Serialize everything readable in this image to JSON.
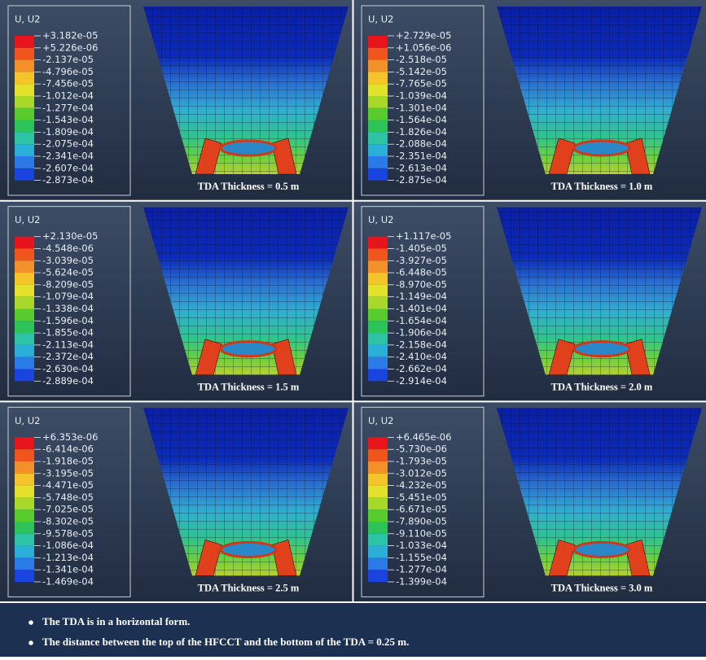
{
  "panels": [
    {
      "legend_title": "U, U2",
      "legend_values": [
        "+3.182e-05",
        "+5.226e-06",
        "-2.137e-05",
        "-4.796e-05",
        "-7.456e-05",
        "-1.012e-04",
        "-1.277e-04",
        "-1.543e-04",
        "-1.809e-04",
        "-2.075e-04",
        "-2.341e-04",
        "-2.607e-04",
        "-2.873e-04"
      ],
      "caption": "TDA Thickness = 0.5 m"
    },
    {
      "legend_title": "U, U2",
      "legend_values": [
        "+2.729e-05",
        "+1.056e-06",
        "-2.518e-05",
        "-5.142e-05",
        "-7.765e-05",
        "-1.039e-04",
        "-1.301e-04",
        "-1.564e-04",
        "-1.826e-04",
        "-2.088e-04",
        "-2.351e-04",
        "-2.613e-04",
        "-2.875e-04"
      ],
      "caption": "TDA Thickness = 1.0 m"
    },
    {
      "legend_title": "U, U2",
      "legend_values": [
        "+2.130e-05",
        "-4.548e-06",
        "-3.039e-05",
        "-5.624e-05",
        "-8.209e-05",
        "-1.079e-04",
        "-1.338e-04",
        "-1.596e-04",
        "-1.855e-04",
        "-2.113e-04",
        "-2.372e-04",
        "-2.630e-04",
        "-2.889e-04"
      ],
      "caption": "TDA Thickness = 1.5 m"
    },
    {
      "legend_title": "U, U2",
      "legend_values": [
        "+1.117e-05",
        "-1.405e-05",
        "-3.927e-05",
        "-6.448e-05",
        "-8.970e-05",
        "-1.149e-04",
        "-1.401e-04",
        "-1.654e-04",
        "-1.906e-04",
        "-2.158e-04",
        "-2.410e-04",
        "-2.662e-04",
        "-2.914e-04"
      ],
      "caption": "TDA Thickness = 2.0 m"
    },
    {
      "legend_title": "U, U2",
      "legend_values": [
        "+6.353e-06",
        "-6.414e-06",
        "-1.918e-05",
        "-3.195e-05",
        "-4.471e-05",
        "-5.748e-05",
        "-7.025e-05",
        "-8.302e-05",
        "-9.578e-05",
        "-1.086e-04",
        "-1.213e-04",
        "-1.341e-04",
        "-1.469e-04"
      ],
      "caption": "TDA Thickness = 2.5 m"
    },
    {
      "legend_title": "U, U2",
      "legend_values": [
        "+6.465e-06",
        "-5.730e-06",
        "-1.793e-05",
        "-3.012e-05",
        "-4.232e-05",
        "-5.451e-05",
        "-6.671e-05",
        "-7.890e-05",
        "-9.110e-05",
        "-1.033e-04",
        "-1.155e-04",
        "-1.277e-04",
        "-1.399e-04"
      ],
      "caption": "TDA Thickness = 3.0 m"
    }
  ],
  "notes": [
    "The TDA is in a horizontal form.",
    "The distance between the top of the HFCCT and the bottom of the TDA = 0.25 m."
  ]
}
